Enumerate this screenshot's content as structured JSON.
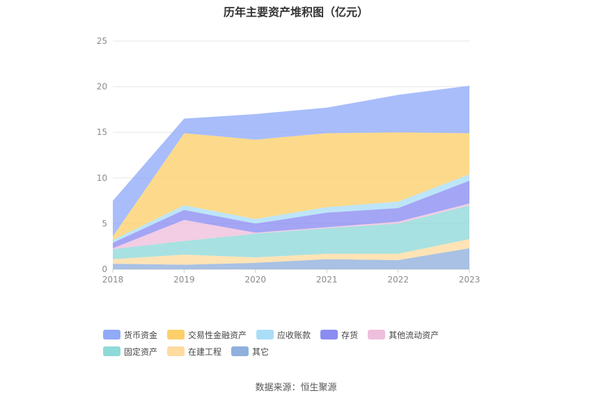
{
  "chart_data": {
    "type": "area",
    "stacked": true,
    "title": "历年主要资产堆积图（亿元）",
    "source": "数据来源：恒生聚源",
    "x": [
      "2018",
      "2019",
      "2020",
      "2021",
      "2022",
      "2023"
    ],
    "ylim": [
      0,
      25
    ],
    "yticks": [
      0,
      5,
      10,
      15,
      20,
      25
    ],
    "grid": true,
    "legend_position": "bottom",
    "series": [
      {
        "name": "其它",
        "color": "#8fb0dc",
        "values": [
          0.6,
          0.5,
          0.7,
          1.1,
          1.0,
          2.3
        ]
      },
      {
        "name": "在建工程",
        "color": "#fedba0",
        "values": [
          0.5,
          1.1,
          0.6,
          0.6,
          0.7,
          1.0
        ]
      },
      {
        "name": "固定资产",
        "color": "#8fd9d9",
        "values": [
          1.1,
          1.5,
          2.6,
          2.8,
          3.3,
          3.7
        ]
      },
      {
        "name": "其他流动资产",
        "color": "#eebfdc",
        "values": [
          0.1,
          2.3,
          0.1,
          0.1,
          0.2,
          0.2
        ]
      },
      {
        "name": "存货",
        "color": "#8a8cf2",
        "values": [
          0.6,
          1.1,
          1.0,
          1.6,
          1.5,
          2.5
        ]
      },
      {
        "name": "应收账款",
        "color": "#aadef6",
        "values": [
          0.3,
          0.5,
          0.5,
          0.6,
          0.7,
          0.7
        ]
      },
      {
        "name": "交易性金融资产",
        "color": "#fdcf6a",
        "values": [
          0.4,
          7.9,
          8.7,
          8.1,
          7.6,
          4.5
        ]
      },
      {
        "name": "货币资金",
        "color": "#90aaf8",
        "values": [
          3.9,
          1.6,
          2.8,
          2.8,
          4.1,
          5.2
        ]
      }
    ],
    "legend_order": [
      "货币资金",
      "交易性金融资产",
      "应收账款",
      "存货",
      "其他流动资产",
      "固定资产",
      "在建工程",
      "其它"
    ]
  }
}
